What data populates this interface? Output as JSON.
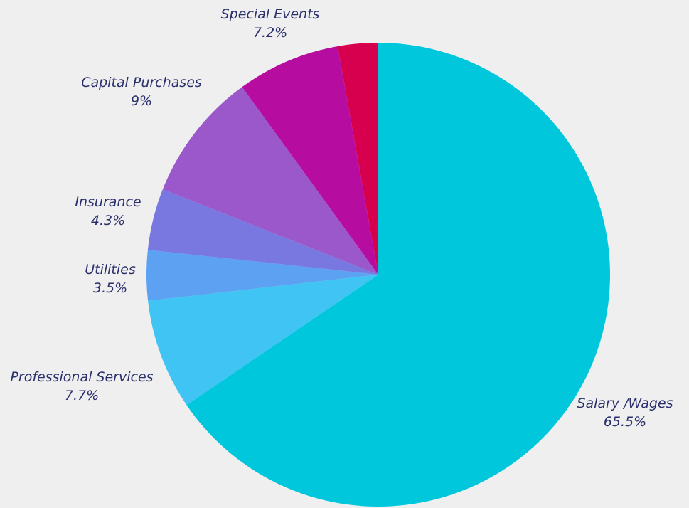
{
  "chart_data": {
    "type": "pie",
    "title": "",
    "slices": [
      {
        "label": "Salary /Wages",
        "value": 65.5,
        "value_label": "65.5%",
        "color": "#00c7dc"
      },
      {
        "label": "Professional Services",
        "value": 7.7,
        "value_label": "7.7%",
        "color": "#40c4f4"
      },
      {
        "label": "Utilities",
        "value": 3.5,
        "value_label": "3.5%",
        "color": "#5ca1f2"
      },
      {
        "label": "Insurance",
        "value": 4.3,
        "value_label": "4.3%",
        "color": "#7878e0"
      },
      {
        "label": "Capital Purchases",
        "value": 9,
        "value_label": "9%",
        "color": "#9a58cb"
      },
      {
        "label": "Special Events",
        "value": 7.2,
        "value_label": "7.2%",
        "color": "#b70ca0"
      },
      {
        "label": "",
        "value": 2.8,
        "value_label": "",
        "color": "#d7004e"
      }
    ],
    "start_angle": "12 o'clock",
    "direction": "clockwise",
    "legend": "none",
    "label_style": "italic"
  }
}
